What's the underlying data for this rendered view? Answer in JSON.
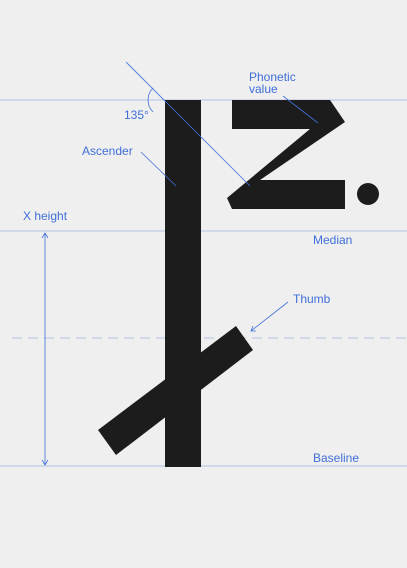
{
  "labels": {
    "phonetic_value_line1": "Phonetic",
    "phonetic_value_line2": "value",
    "angle": "135°",
    "ascender": "Ascender",
    "x_height": "X height",
    "median": "Median",
    "thumb": "Thumb",
    "baseline": "Baseline"
  },
  "colors": {
    "background": "#efefef",
    "glyph": "#1c1c1c",
    "annotation": "#3f6fd8"
  }
}
